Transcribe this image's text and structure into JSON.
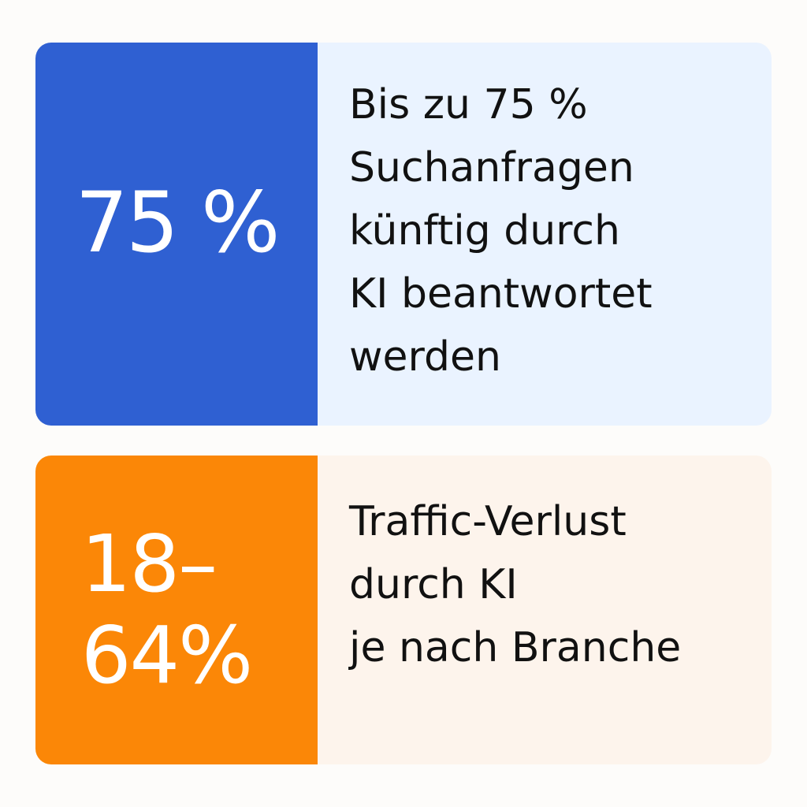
{
  "cards": [
    {
      "stat": "75 %",
      "description_lines": [
        "Bis zu 75 %",
        "Suchanfragen",
        "künftig durch",
        "KI beantwortet",
        "werden"
      ],
      "stat_color": "#2f60d2",
      "background_color": "#eaf3ff"
    },
    {
      "stat_lines": [
        "18–",
        "64%"
      ],
      "description_lines": [
        "Traffic-Verlust",
        "durch KI",
        "je nach Branche"
      ],
      "stat_color": "#fb8707",
      "background_color": "#fdf4ec"
    }
  ]
}
